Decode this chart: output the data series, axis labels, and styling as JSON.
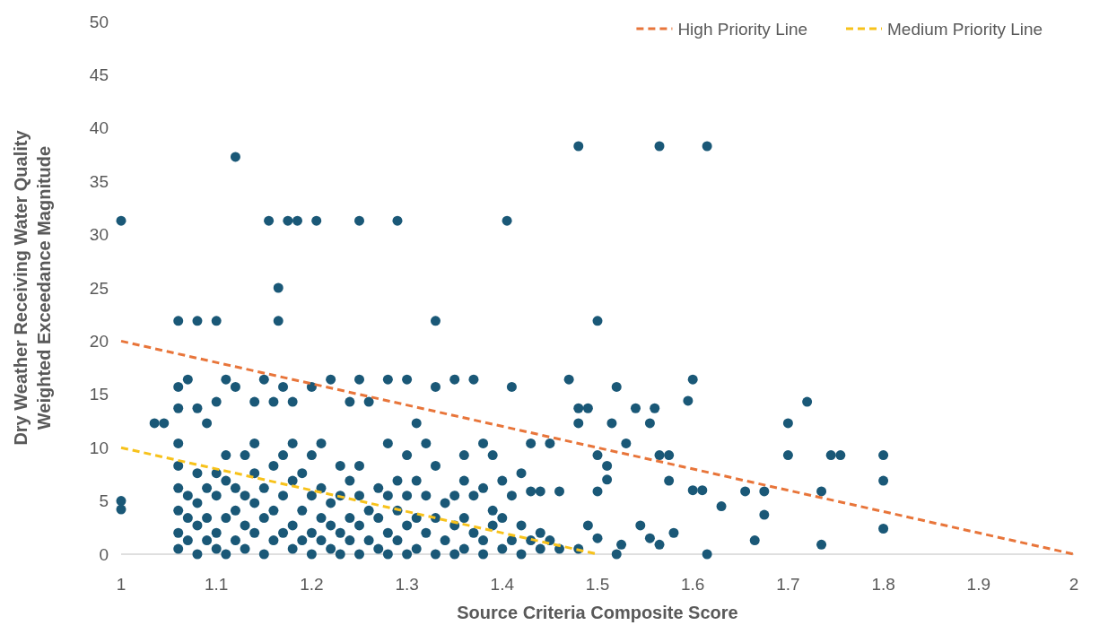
{
  "chart_data": {
    "type": "scatter",
    "xlabel": "Source Criteria Composite Score",
    "ylabel": "Dry Weather Receiving Water Quality\nWeighted Exceedance Magnitude",
    "xlim": [
      1,
      2
    ],
    "ylim": [
      0,
      50
    ],
    "xticks": [
      1,
      1.1,
      1.2,
      1.3,
      1.4,
      1.5,
      1.6,
      1.7,
      1.8,
      1.9,
      2
    ],
    "yticks": [
      0,
      5,
      10,
      15,
      20,
      25,
      30,
      35,
      40,
      45,
      50
    ],
    "grid": false,
    "legend": "top right",
    "series": [
      {
        "color": "#1a5877",
        "marker": "circle",
        "x": [
          1,
          1,
          1,
          1.12,
          1.155,
          1.175,
          1.185,
          1.205,
          1.25,
          1.29,
          1.405,
          1.48,
          1.565,
          1.615,
          1.165,
          1.06,
          1.08,
          1.1,
          1.165,
          1.33,
          1.5,
          1.035,
          1.045,
          1.52,
          1.6,
          1.595,
          1.72,
          1.7,
          1.7,
          1.745,
          1.755,
          1.8,
          1.8,
          1.8,
          1.735,
          1.735,
          1.675,
          1.655,
          1.675,
          1.665,
          1.63,
          1.615,
          1.6,
          1.61,
          1.58,
          1.565,
          1.575,
          1.575,
          1.555,
          1.565,
          1.545,
          1.525,
          1.52,
          1.53,
          1.54,
          1.555,
          1.56,
          1.515,
          1.49,
          1.48,
          1.48,
          1.47,
          1.5,
          1.51,
          1.51,
          1.5,
          1.49,
          1.5,
          1.48,
          1.06,
          1.06,
          1.06,
          1.06,
          1.06,
          1.06,
          1.06,
          1.06,
          1.07,
          1.07,
          1.07,
          1.07,
          1.08,
          1.08,
          1.08,
          1.08,
          1.08,
          1.09,
          1.09,
          1.09,
          1.09,
          1.1,
          1.1,
          1.1,
          1.1,
          1.1,
          1.11,
          1.11,
          1.11,
          1.11,
          1.11,
          1.12,
          1.12,
          1.12,
          1.12,
          1.13,
          1.13,
          1.13,
          1.13,
          1.14,
          1.14,
          1.14,
          1.14,
          1.14,
          1.15,
          1.15,
          1.15,
          1.15,
          1.16,
          1.16,
          1.16,
          1.16,
          1.17,
          1.17,
          1.17,
          1.17,
          1.18,
          1.18,
          1.18,
          1.18,
          1.18,
          1.19,
          1.19,
          1.19,
          1.2,
          1.2,
          1.2,
          1.2,
          1.2,
          1.21,
          1.21,
          1.21,
          1.21,
          1.22,
          1.22,
          1.22,
          1.22,
          1.23,
          1.23,
          1.23,
          1.23,
          1.24,
          1.24,
          1.24,
          1.24,
          1.25,
          1.25,
          1.25,
          1.25,
          1.25,
          1.26,
          1.26,
          1.26,
          1.27,
          1.27,
          1.27,
          1.28,
          1.28,
          1.28,
          1.28,
          1.28,
          1.29,
          1.29,
          1.29,
          1.3,
          1.3,
          1.3,
          1.3,
          1.3,
          1.31,
          1.31,
          1.31,
          1.31,
          1.32,
          1.32,
          1.32,
          1.33,
          1.33,
          1.33,
          1.33,
          1.34,
          1.34,
          1.35,
          1.35,
          1.35,
          1.35,
          1.36,
          1.36,
          1.36,
          1.36,
          1.37,
          1.37,
          1.37,
          1.38,
          1.38,
          1.38,
          1.38,
          1.39,
          1.39,
          1.39,
          1.4,
          1.4,
          1.4,
          1.41,
          1.41,
          1.41,
          1.42,
          1.42,
          1.42,
          1.43,
          1.43,
          1.43,
          1.44,
          1.44,
          1.44,
          1.45,
          1.45,
          1.46,
          1.46
        ],
        "values": [
          31.3,
          5,
          4.2,
          37.3,
          31.3,
          31.3,
          31.3,
          31.3,
          31.3,
          31.3,
          31.3,
          38.3,
          38.3,
          38.3,
          25,
          21.9,
          21.9,
          21.9,
          21.9,
          21.9,
          21.9,
          12.3,
          12.3,
          15.7,
          16.4,
          14.4,
          14.3,
          12.3,
          9.3,
          9.3,
          9.3,
          9.3,
          6.9,
          2.4,
          5.9,
          0.9,
          5.9,
          5.9,
          3.7,
          1.3,
          4.5,
          0,
          6,
          6,
          2,
          9.3,
          9.3,
          6.9,
          1.5,
          0.9,
          2.7,
          0.9,
          0,
          10.4,
          13.7,
          12.3,
          13.7,
          12.3,
          13.7,
          13.7,
          12.3,
          16.4,
          9.3,
          8.3,
          7,
          5.9,
          2.7,
          1.5,
          0.5,
          0.5,
          2,
          4.1,
          6.2,
          8.3,
          10.4,
          13.7,
          15.7,
          1.3,
          3.4,
          5.5,
          16.4,
          0,
          2.7,
          4.8,
          7.6,
          13.7,
          1.3,
          3.4,
          6.2,
          12.3,
          0.5,
          2,
          5.5,
          7.6,
          14.3,
          0,
          3.4,
          6.9,
          9.3,
          16.4,
          1.3,
          4.1,
          6.2,
          15.7,
          0.5,
          2.7,
          5.5,
          9.3,
          2,
          4.8,
          7.6,
          10.4,
          14.3,
          0,
          3.4,
          6.2,
          16.4,
          1.3,
          4.1,
          8.3,
          14.3,
          2,
          5.5,
          9.3,
          15.7,
          0.5,
          2.7,
          6.9,
          10.4,
          14.3,
          1.3,
          4.1,
          7.6,
          0,
          2,
          5.5,
          9.3,
          15.7,
          1.3,
          3.4,
          6.2,
          10.4,
          0.5,
          2.7,
          4.8,
          16.4,
          0,
          2,
          5.5,
          8.3,
          1.3,
          3.4,
          6.9,
          14.3,
          0,
          2.7,
          5.5,
          8.3,
          16.4,
          1.3,
          4.1,
          14.3,
          0.5,
          3.4,
          6.2,
          0,
          2,
          5.5,
          10.4,
          16.4,
          1.3,
          4.1,
          6.9,
          0,
          2.7,
          5.5,
          9.3,
          16.4,
          0.5,
          3.4,
          6.9,
          12.3,
          2,
          5.5,
          10.4,
          0,
          3.4,
          8.3,
          15.7,
          1.3,
          4.8,
          0,
          2.7,
          5.5,
          16.4,
          0.5,
          3.4,
          6.9,
          9.3,
          2,
          5.5,
          16.4,
          0,
          1.3,
          6.2,
          10.4,
          2.7,
          4.1,
          9.3,
          0.5,
          3.4,
          6.9,
          1.3,
          5.5,
          15.7,
          0,
          2.7,
          7.6,
          1.3,
          5.9,
          10.4,
          0.5,
          2,
          5.9,
          1.3,
          10.4,
          0.5,
          5.9
        ]
      },
      {
        "type": "line",
        "name": "High Priority Line",
        "color": "#e8753a",
        "marker": "none",
        "line_style": "dashed",
        "x": [
          1,
          2
        ],
        "values": [
          20,
          0
        ]
      },
      {
        "type": "line",
        "name": "Medium Priority Line",
        "color": "#f7c21b",
        "marker": "none",
        "line_style": "dashed",
        "x": [
          1,
          1.5
        ],
        "values": [
          10,
          0
        ]
      }
    ]
  }
}
